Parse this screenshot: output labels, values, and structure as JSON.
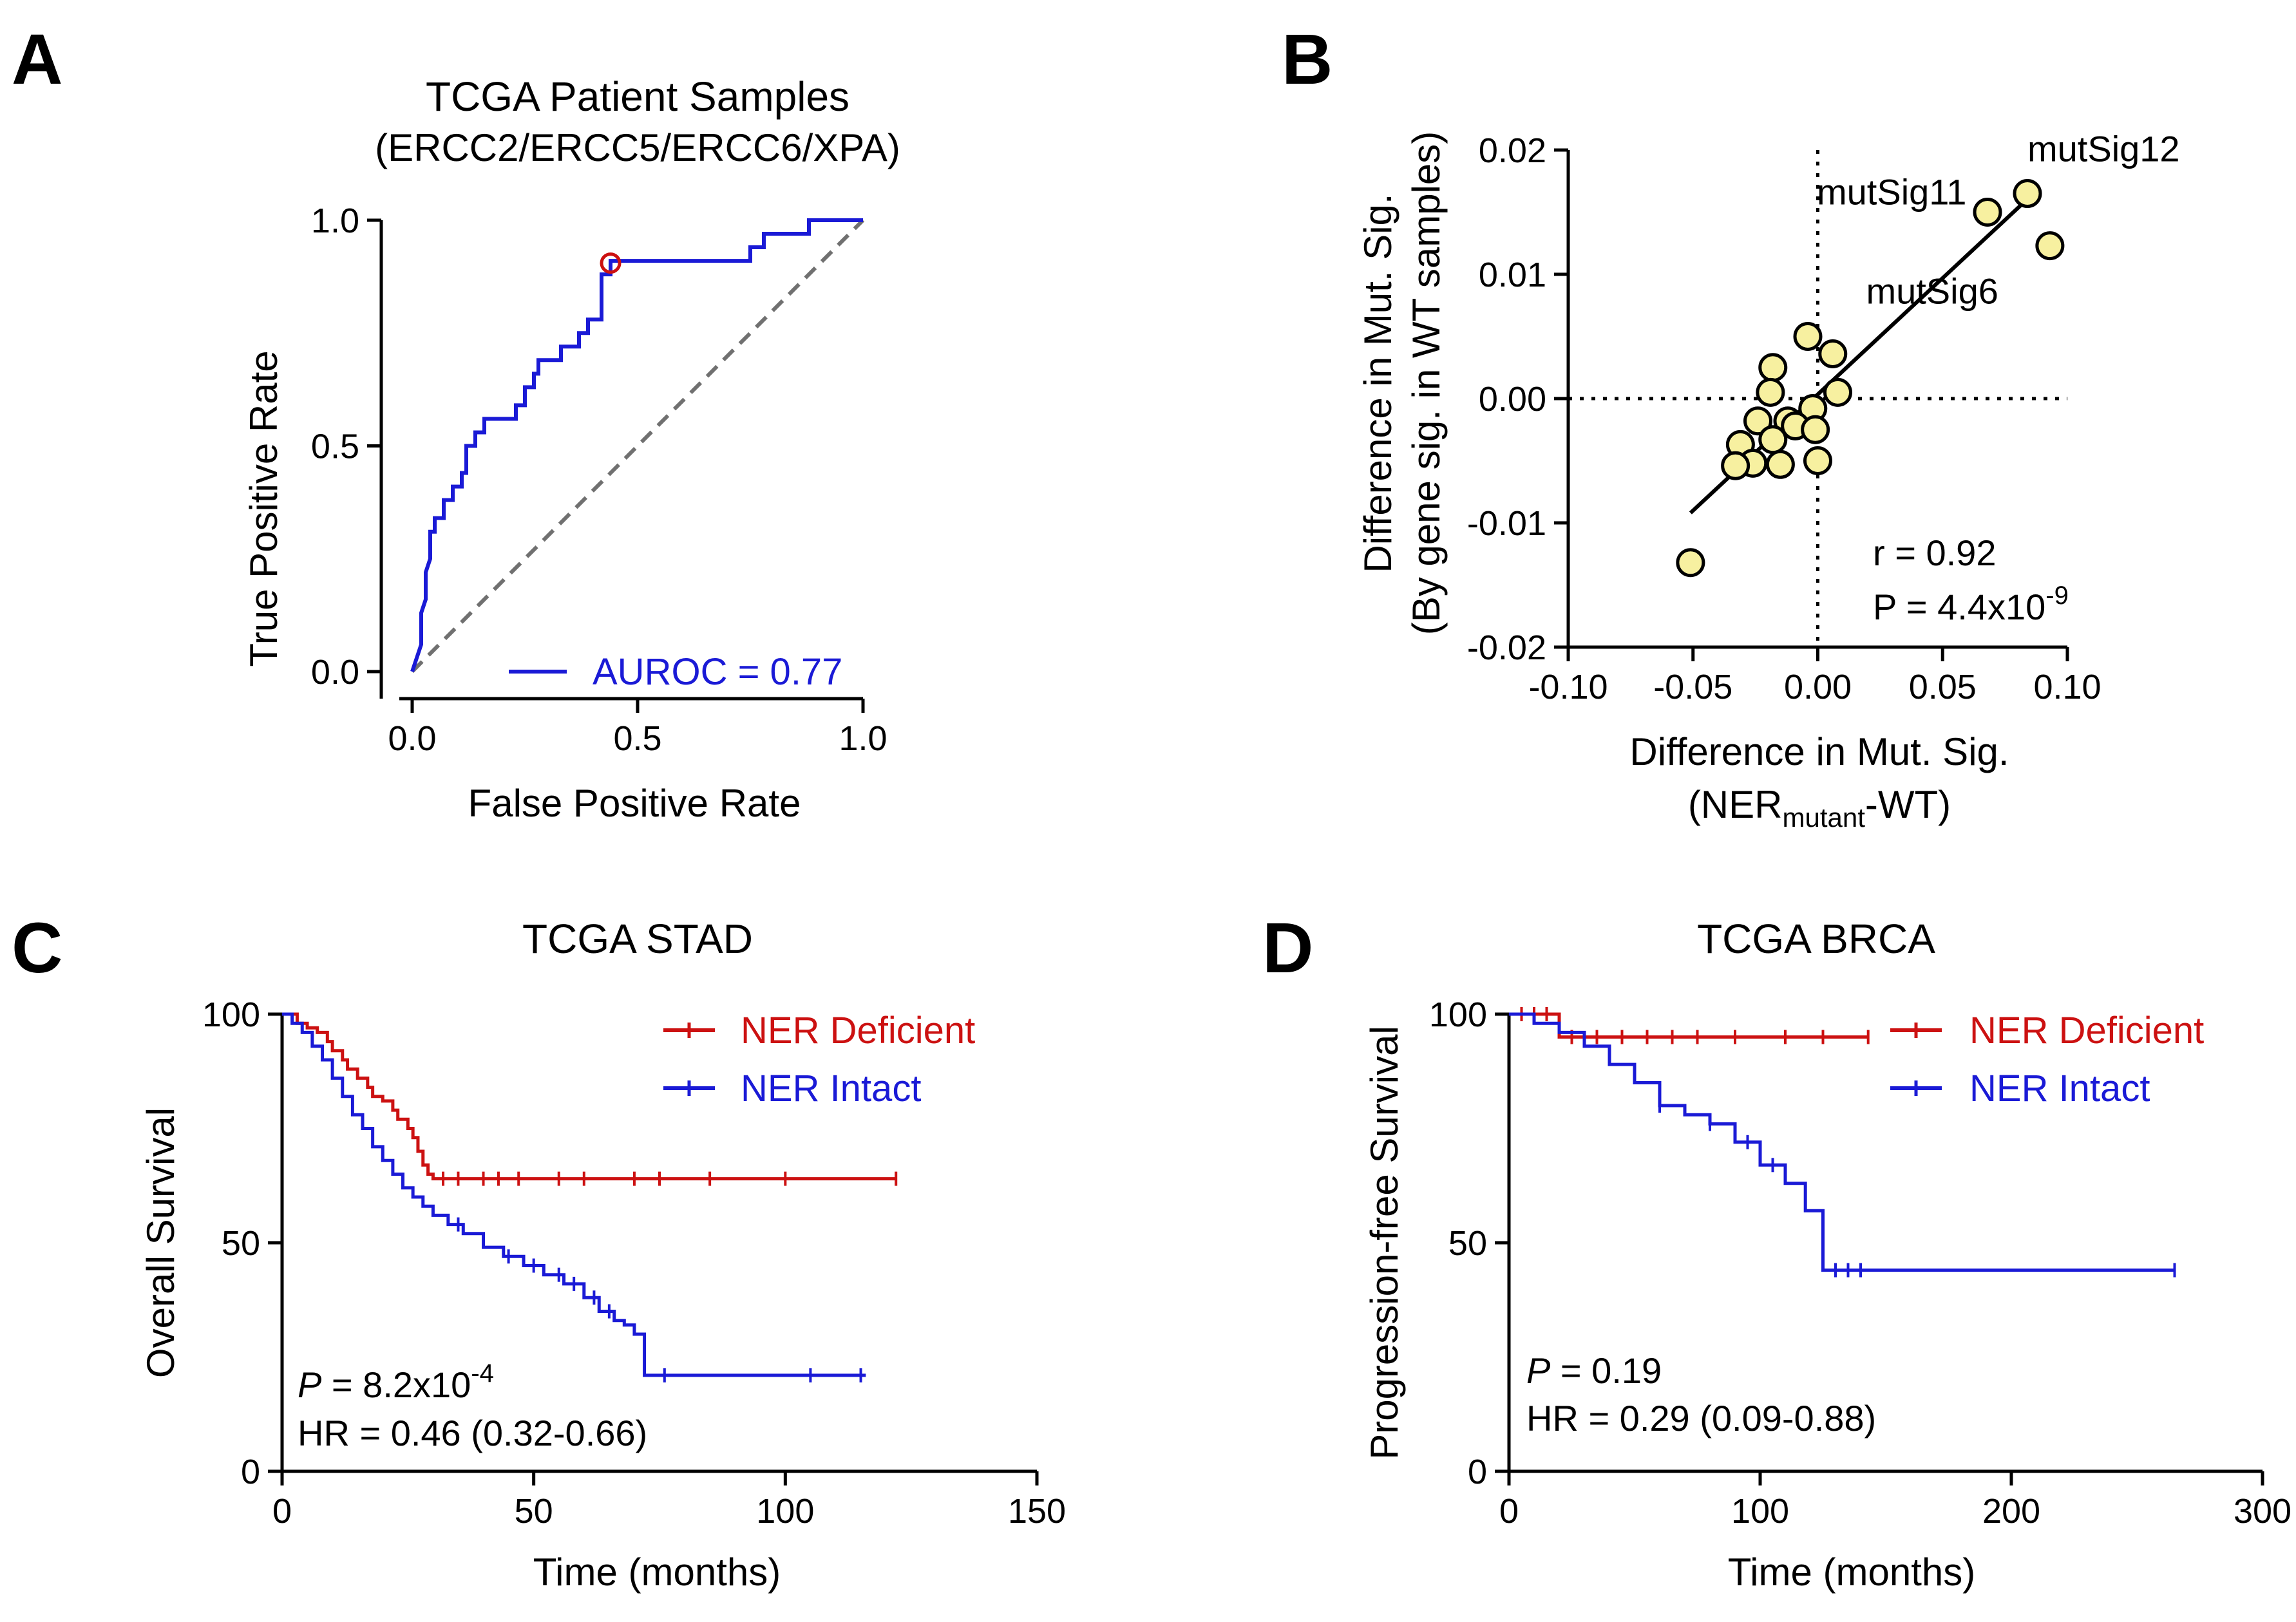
{
  "figure": {
    "panels": [
      "A",
      "B",
      "C",
      "D"
    ]
  },
  "colors": {
    "blue": "#1a1ad6",
    "red": "#cc1111",
    "gray": "#707070",
    "yellow_fill": "#f7f0a0",
    "black": "#000000"
  },
  "chart_data": [
    {
      "panel": "A",
      "type": "line",
      "title": "TCGA Patient Samples",
      "subtitle": "(ERCC2/ERCC5/ERCC6/XPA)",
      "xlabel": "False Positive Rate",
      "ylabel": "True Positive Rate",
      "xlim": [
        0,
        1
      ],
      "ylim": [
        0,
        1
      ],
      "xticks": [
        "0.0",
        "0.5",
        "1.0"
      ],
      "yticks": [
        "0.0",
        "0.5",
        "1.0"
      ],
      "xtick_values": [
        0,
        0.5,
        1
      ],
      "ytick_values": [
        0,
        0.5,
        1
      ],
      "legend": "AUROC = 0.77",
      "series": [
        {
          "name": "ROC",
          "x": [
            0,
            0.01,
            0.02,
            0.02,
            0.03,
            0.03,
            0.04,
            0.04,
            0.05,
            0.05,
            0.07,
            0.07,
            0.09,
            0.09,
            0.11,
            0.11,
            0.12,
            0.12,
            0.14,
            0.14,
            0.16,
            0.16,
            0.23,
            0.23,
            0.25,
            0.25,
            0.27,
            0.27,
            0.28,
            0.28,
            0.33,
            0.33,
            0.37,
            0.37,
            0.39,
            0.39,
            0.42,
            0.42,
            0.44,
            0.44,
            0.75,
            0.75,
            0.78,
            0.78,
            0.88,
            0.88,
            1.0
          ],
          "y": [
            0,
            0.03,
            0.06,
            0.13,
            0.16,
            0.22,
            0.25,
            0.31,
            0.31,
            0.34,
            0.34,
            0.38,
            0.38,
            0.41,
            0.41,
            0.44,
            0.44,
            0.5,
            0.5,
            0.53,
            0.53,
            0.56,
            0.56,
            0.59,
            0.59,
            0.63,
            0.63,
            0.66,
            0.66,
            0.69,
            0.69,
            0.72,
            0.72,
            0.75,
            0.75,
            0.78,
            0.78,
            0.88,
            0.88,
            0.91,
            0.91,
            0.94,
            0.94,
            0.97,
            0.97,
            1.0,
            1.0
          ]
        },
        {
          "name": "chance",
          "x": [
            0,
            1
          ],
          "y": [
            0,
            1
          ]
        }
      ],
      "optimal_point": {
        "x": 0.44,
        "y": 0.905
      }
    },
    {
      "panel": "B",
      "type": "scatter",
      "xlabel": "Difference in Mut. Sig.",
      "xlabel2_prefix": "(NER",
      "xlabel2_sub": "mutant",
      "xlabel2_suffix": "-WT)",
      "ylabel": "Difference in Mut. Sig.",
      "ylabel2": "(By gene sig. in WT samples)",
      "xlim": [
        -0.1,
        0.1
      ],
      "ylim": [
        -0.02,
        0.02
      ],
      "xticks": [
        "-0.10",
        "-0.05",
        "0.00",
        "0.05",
        "0.10"
      ],
      "yticks": [
        "-0.02",
        "-0.01",
        "0.00",
        "0.01",
        "0.02"
      ],
      "xtick_values": [
        -0.1,
        -0.05,
        0.0,
        0.05,
        0.1
      ],
      "ytick_values": [
        -0.02,
        -0.01,
        0.0,
        0.01,
        0.02
      ],
      "points": [
        {
          "x": 0.084,
          "y": 0.0165,
          "label": "mutSig12"
        },
        {
          "x": 0.068,
          "y": 0.015,
          "label": "mutSig11"
        },
        {
          "x": 0.093,
          "y": 0.0123,
          "label": "mutSig6"
        },
        {
          "x": -0.051,
          "y": -0.0132
        },
        {
          "x": -0.004,
          "y": 0.005
        },
        {
          "x": -0.018,
          "y": 0.0025
        },
        {
          "x": 0.006,
          "y": 0.0036
        },
        {
          "x": -0.019,
          "y": 0.0005
        },
        {
          "x": 0.008,
          "y": 0.0005
        },
        {
          "x": -0.002,
          "y": -0.0008
        },
        {
          "x": -0.012,
          "y": -0.0018
        },
        {
          "x": -0.024,
          "y": -0.0018
        },
        {
          "x": -0.031,
          "y": -0.0037
        },
        {
          "x": -0.018,
          "y": -0.0033
        },
        {
          "x": -0.009,
          "y": -0.0022
        },
        {
          "x": -0.001,
          "y": -0.0025
        },
        {
          "x": -0.026,
          "y": -0.0052
        },
        {
          "x": -0.033,
          "y": -0.0054
        },
        {
          "x": -0.015,
          "y": -0.0053
        },
        {
          "x": 0.0,
          "y": -0.005
        }
      ],
      "fit_line": {
        "x": [
          -0.051,
          0.088
        ],
        "y": [
          -0.0092,
          0.0168
        ]
      },
      "r_text": "r = 0.92",
      "p_text_prefix": "P = 4.4x10",
      "p_text_exp": "-9"
    },
    {
      "panel": "C",
      "type": "line",
      "title": "TCGA STAD",
      "xlabel": "Time (months)",
      "ylabel": "Overall Survival",
      "xlim": [
        0,
        150
      ],
      "ylim": [
        0,
        100
      ],
      "xticks": [
        "0",
        "50",
        "100",
        "150"
      ],
      "yticks": [
        "0",
        "50",
        "100"
      ],
      "xtick_values": [
        0,
        50,
        100,
        150
      ],
      "ytick_values": [
        0,
        50,
        100
      ],
      "legend": [
        "NER Deficient",
        "NER Intact"
      ],
      "p_prefix": "P",
      "p_text": " = 8.2x10",
      "p_exp": "-4",
      "hr_text": "HR = 0.46 (0.32-0.66)",
      "series": [
        {
          "name": "NER Deficient",
          "x": [
            0,
            3,
            5,
            7,
            9,
            10,
            12,
            13,
            15,
            17,
            18,
            20,
            22,
            23,
            25,
            26,
            27,
            28,
            29,
            30,
            122
          ],
          "y": [
            100,
            98,
            97,
            96,
            94,
            92,
            90,
            88,
            86,
            84,
            82,
            81,
            79,
            77,
            75,
            73,
            70,
            67,
            65,
            64,
            64
          ],
          "censor_x": [
            32,
            35,
            40,
            43,
            47,
            55,
            60,
            70,
            75,
            85,
            100,
            122
          ]
        },
        {
          "name": "NER Intact",
          "x": [
            0,
            2,
            4,
            6,
            8,
            10,
            12,
            14,
            16,
            18,
            20,
            22,
            24,
            26,
            28,
            30,
            33,
            36,
            40,
            44,
            48,
            52,
            56,
            60,
            63,
            66,
            68,
            70,
            72,
            116
          ],
          "y": [
            100,
            98,
            96,
            93,
            90,
            86,
            82,
            78,
            75,
            71,
            68,
            65,
            62,
            60,
            58,
            56,
            54,
            52,
            49,
            47,
            45,
            43,
            41,
            38,
            35,
            33,
            32,
            30,
            21,
            21
          ],
          "censor_x": [
            35,
            45,
            50,
            55,
            58,
            62,
            65,
            76,
            105,
            115
          ]
        }
      ]
    },
    {
      "panel": "D",
      "type": "line",
      "title": "TCGA BRCA",
      "xlabel": "Time (months)",
      "ylabel": "Progression-free Survival",
      "xlim": [
        0,
        300
      ],
      "ylim": [
        0,
        100
      ],
      "xticks": [
        "0",
        "100",
        "200",
        "300"
      ],
      "yticks": [
        "0",
        "50",
        "100"
      ],
      "xtick_values": [
        0,
        100,
        200,
        300
      ],
      "ytick_values": [
        0,
        50,
        100
      ],
      "legend": [
        "NER Deficient",
        "NER Intact"
      ],
      "p_prefix": "P",
      "p_text": " = 0.19",
      "hr_text": "HR = 0.29 (0.09-0.88)",
      "series": [
        {
          "name": "NER Deficient",
          "x": [
            0,
            18,
            20,
            143
          ],
          "y": [
            100,
            100,
            95,
            95
          ],
          "censor_x": [
            5,
            10,
            15,
            25,
            35,
            45,
            55,
            65,
            75,
            90,
            110,
            125,
            143
          ]
        },
        {
          "name": "NER Intact",
          "x": [
            0,
            10,
            20,
            30,
            40,
            50,
            60,
            70,
            80,
            90,
            100,
            110,
            118,
            125,
            265
          ],
          "y": [
            100,
            98,
            96,
            93,
            89,
            85,
            80,
            78,
            76,
            72,
            67,
            63,
            57,
            44,
            44
          ],
          "censor_x": [
            60,
            80,
            95,
            105,
            130,
            135,
            140,
            265
          ]
        }
      ]
    }
  ]
}
